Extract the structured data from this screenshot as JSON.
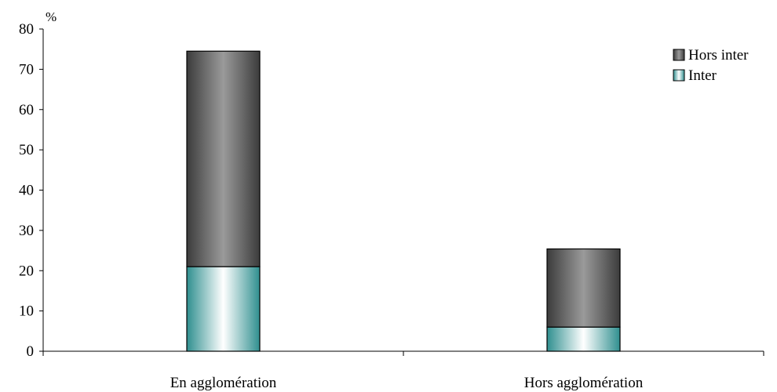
{
  "chart_data": {
    "type": "bar",
    "stacked": true,
    "categories": [
      "En agglomération",
      "Hors agglomération"
    ],
    "series": [
      {
        "name": "Inter",
        "values": [
          21,
          6
        ]
      },
      {
        "name": "Hors inter",
        "values": [
          53.5,
          19.4
        ]
      }
    ],
    "y_unit": "%",
    "ylim": [
      0,
      80
    ],
    "yticks": [
      0,
      10,
      20,
      30,
      40,
      50,
      60,
      70,
      80
    ],
    "grid": false,
    "legend_position": "top-right",
    "colors": {
      "Hors inter": [
        "#3c3c3c",
        "#9a9a9a"
      ],
      "Inter": [
        "#2f8f8f",
        "#ffffff"
      ]
    }
  }
}
